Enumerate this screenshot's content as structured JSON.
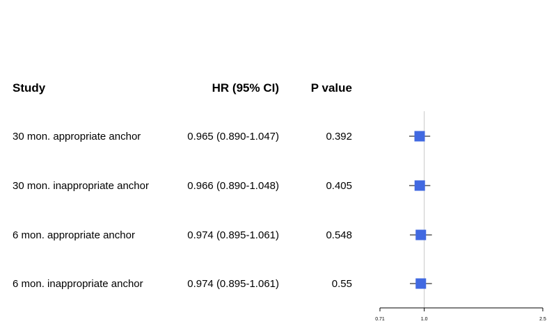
{
  "columns": {
    "study": "Study",
    "hr": "HR (95% CI)",
    "p": "P value"
  },
  "rows": [
    {
      "study": "30 mon. appropriate anchor",
      "hr_text": "0.965 (0.890-1.047)",
      "p": "0.392"
    },
    {
      "study": "30 mon. inappropriate anchor",
      "hr_text": "0.966 (0.890-1.048)",
      "p": "0.405"
    },
    {
      "study": "6 mon. appropriate anchor",
      "hr_text": "0.974 (0.895-1.061)",
      "p": "0.548"
    },
    {
      "study": "6 mon. inappropriate anchor",
      "hr_text": "0.974 (0.895-1.061)",
      "p": "0.55"
    }
  ],
  "chart_data": {
    "type": "forest",
    "scale": "log",
    "xlim": [
      0.71,
      2.5
    ],
    "xticks": [
      {
        "value": 0.71,
        "label": "0.71"
      },
      {
        "value": 1.0,
        "label": "1.0"
      },
      {
        "value": 2.5,
        "label": "2.5"
      }
    ],
    "reference_line": 1.0,
    "series": [
      {
        "study": "30 mon. appropriate anchor",
        "hr": 0.965,
        "lower": 0.89,
        "upper": 1.047
      },
      {
        "study": "30 mon. inappropriate anchor",
        "hr": 0.966,
        "lower": 0.89,
        "upper": 1.048
      },
      {
        "study": "6 mon. appropriate anchor",
        "hr": 0.974,
        "lower": 0.895,
        "upper": 1.061
      },
      {
        "study": "6 mon. inappropriate anchor",
        "hr": 0.974,
        "lower": 0.895,
        "upper": 1.061
      }
    ],
    "colors": {
      "box": "#4169e1",
      "line": "#000000",
      "reference": "#c8c8c8"
    }
  }
}
